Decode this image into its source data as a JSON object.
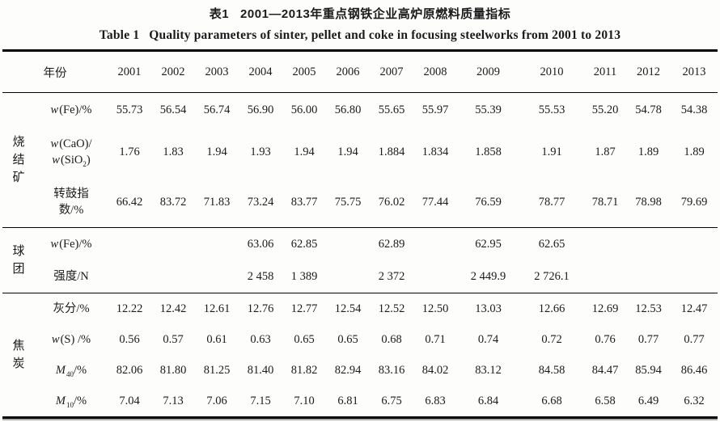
{
  "colors": {
    "background": "#fdfdfc",
    "text": "#1b1b1b",
    "rule": "#000000"
  },
  "caption": {
    "zh_label": "表1",
    "zh_title": "2001—2013年重点钢铁企业高炉原燃料质量指标",
    "en_label": "Table 1",
    "en_title": "Quality parameters of sinter, pellet and coke in focusing steelworks from 2001 to 2013"
  },
  "table": {
    "year_header": "年份",
    "years": [
      "2001",
      "2002",
      "2003",
      "2004",
      "2005",
      "2006",
      "2007",
      "2008",
      "2009",
      "2010",
      "2011",
      "2012",
      "2013"
    ],
    "groups": [
      {
        "id": "sinter",
        "name": "烧结矿",
        "rows": [
          {
            "label_lines": [
              "*w*(Fe)/%"
            ],
            "values": [
              "55.73",
              "56.54",
              "56.74",
              "56.90",
              "56.00",
              "56.80",
              "55.65",
              "55.97",
              "55.39",
              "55.53",
              "55.20",
              "54.78",
              "54.38"
            ]
          },
          {
            "label_lines": [
              "*w*(CaO)/",
              "*w*(SiO~2~)"
            ],
            "values": [
              "1.76",
              "1.83",
              "1.94",
              "1.93",
              "1.94",
              "1.94",
              "1.884",
              "1.834",
              "1.858",
              "1.91",
              "1.87",
              "1.89",
              "1.89"
            ]
          },
          {
            "label_lines": [
              "转鼓指",
              "数/%"
            ],
            "values": [
              "66.42",
              "83.72",
              "71.83",
              "73.24",
              "83.77",
              "75.75",
              "76.02",
              "77.44",
              "76.59",
              "78.77",
              "78.71",
              "78.98",
              "79.69"
            ]
          }
        ]
      },
      {
        "id": "pellet",
        "name": "球团",
        "rows": [
          {
            "label_lines": [
              "*w*(Fe)/%"
            ],
            "values": [
              "",
              "",
              "",
              "63.06",
              "62.85",
              "",
              "62.89",
              "",
              "62.95",
              "62.65",
              "",
              "",
              ""
            ]
          },
          {
            "label_lines": [
              "强度/N"
            ],
            "values": [
              "",
              "",
              "",
              "2 458",
              "1 389",
              "",
              "2 372",
              "",
              "2 449.9",
              "2 726.1",
              "",
              "",
              ""
            ]
          }
        ]
      },
      {
        "id": "coke",
        "name": "焦炭",
        "rows": [
          {
            "label_lines": [
              "灰分/%"
            ],
            "values": [
              "12.22",
              "12.42",
              "12.61",
              "12.76",
              "12.77",
              "12.54",
              "12.52",
              "12.50",
              "13.03",
              "12.66",
              "12.69",
              "12.53",
              "12.47"
            ]
          },
          {
            "label_lines": [
              "*w*(S) /%"
            ],
            "values": [
              "0.56",
              "0.57",
              "0.61",
              "0.63",
              "0.65",
              "0.65",
              "0.68",
              "0.71",
              "0.74",
              "0.72",
              "0.76",
              "0.77",
              "0.77"
            ]
          },
          {
            "label_lines": [
              "*M*~40~/%"
            ],
            "values": [
              "82.06",
              "81.80",
              "81.25",
              "81.40",
              "81.82",
              "82.94",
              "83.16",
              "84.02",
              "83.12",
              "84.58",
              "84.47",
              "85.94",
              "86.46"
            ]
          },
          {
            "label_lines": [
              "*M*~10~/%"
            ],
            "values": [
              "7.04",
              "7.13",
              "7.06",
              "7.15",
              "7.10",
              "6.81",
              "6.75",
              "6.83",
              "6.84",
              "6.68",
              "6.58",
              "6.49",
              "6.32"
            ]
          }
        ]
      }
    ]
  }
}
